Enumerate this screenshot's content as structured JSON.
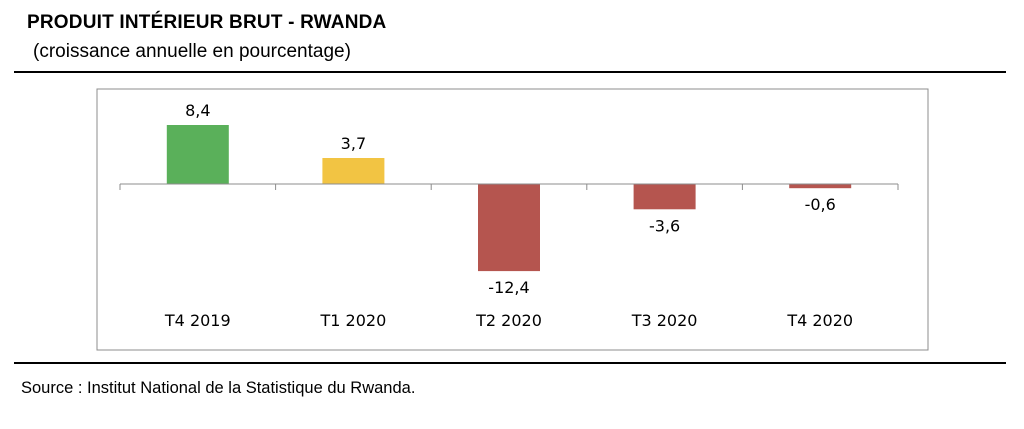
{
  "header": {
    "title": "PRODUIT INTÉRIEUR BRUT - RWANDA",
    "subtitle": "(croissance annuelle en pourcentage)"
  },
  "footer": {
    "source": "Source : Institut National de la Statistique du Rwanda."
  },
  "chart_data": {
    "type": "bar",
    "title": "PRODUIT INTÉRIEUR BRUT - RWANDA",
    "subtitle": "(croissance annuelle en pourcentage)",
    "categories": [
      "T4 2019",
      "T1 2020",
      "T2 2020",
      "T3 2020",
      "T4 2020"
    ],
    "values": [
      8.4,
      3.7,
      -12.4,
      -3.6,
      -0.6
    ],
    "value_labels": [
      "8,4",
      "3,7",
      "-12,4",
      "-3,6",
      "-0,6"
    ],
    "bar_colors": [
      "#5ab05a",
      "#f2c443",
      "#b5554f",
      "#b5554f",
      "#b5554f"
    ],
    "xlabel": "",
    "ylabel": "",
    "ylim": [
      -12.4,
      8.4
    ],
    "grid": false,
    "legend": "none"
  }
}
